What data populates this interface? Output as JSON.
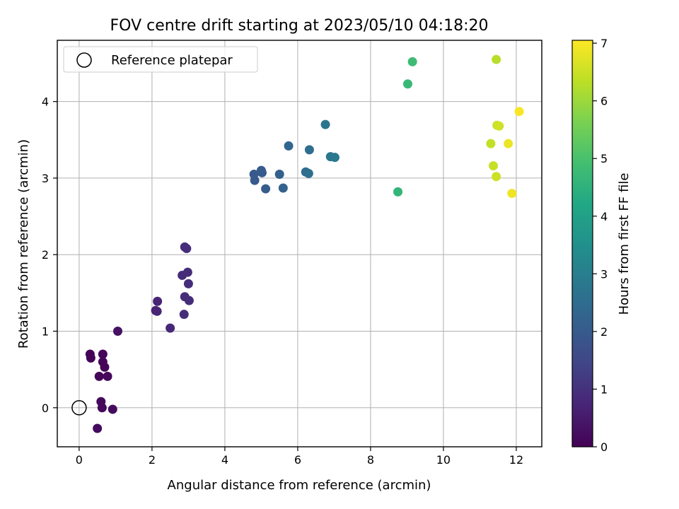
{
  "chart_data": {
    "type": "scatter",
    "title": "FOV centre drift starting at 2023/05/10 04:18:20",
    "xlabel": "Angular distance from reference (arcmin)",
    "ylabel": "Rotation from reference (arcmin)",
    "xlim": [
      -0.6,
      12.7
    ],
    "ylim": [
      -0.51,
      4.8
    ],
    "xticks": [
      0,
      2,
      4,
      6,
      8,
      10,
      12
    ],
    "yticks": [
      0,
      1,
      2,
      3,
      4
    ],
    "grid": true,
    "legend": {
      "placement": "top-left",
      "entries": [
        {
          "label": "Reference platepar",
          "marker": "open-circle"
        }
      ]
    },
    "reference_point": {
      "x": 0,
      "y": 0
    },
    "colorbar": {
      "label": "Hours from first FF file",
      "colormap": "viridis",
      "range": [
        0,
        7.05
      ],
      "ticks": [
        0,
        1,
        2,
        3,
        4,
        5,
        6,
        7
      ]
    },
    "points": [
      {
        "x": 0.3,
        "y": 0.7,
        "c": 0.05
      },
      {
        "x": 0.32,
        "y": 0.65,
        "c": 0.05
      },
      {
        "x": 0.65,
        "y": 0.7,
        "c": 0.1
      },
      {
        "x": 0.65,
        "y": 0.6,
        "c": 0.1
      },
      {
        "x": 0.7,
        "y": 0.53,
        "c": 0.1
      },
      {
        "x": 0.55,
        "y": 0.41,
        "c": 0.1
      },
      {
        "x": 0.78,
        "y": 0.41,
        "c": 0.15
      },
      {
        "x": 0.6,
        "y": 0.08,
        "c": 0.15
      },
      {
        "x": 0.63,
        "y": 0.0,
        "c": 0.15
      },
      {
        "x": 0.92,
        "y": -0.02,
        "c": 0.2
      },
      {
        "x": 0.5,
        "y": -0.27,
        "c": 0.2
      },
      {
        "x": 1.06,
        "y": 1.0,
        "c": 0.35
      },
      {
        "x": 2.1,
        "y": 1.27,
        "c": 0.7
      },
      {
        "x": 2.14,
        "y": 1.26,
        "c": 0.7
      },
      {
        "x": 2.15,
        "y": 1.39,
        "c": 0.7
      },
      {
        "x": 2.5,
        "y": 1.04,
        "c": 0.8
      },
      {
        "x": 2.88,
        "y": 1.22,
        "c": 0.9
      },
      {
        "x": 2.9,
        "y": 1.45,
        "c": 0.9
      },
      {
        "x": 3.02,
        "y": 1.4,
        "c": 0.9
      },
      {
        "x": 3.0,
        "y": 1.62,
        "c": 0.9
      },
      {
        "x": 2.83,
        "y": 1.73,
        "c": 0.9
      },
      {
        "x": 2.98,
        "y": 1.77,
        "c": 0.9
      },
      {
        "x": 2.9,
        "y": 2.1,
        "c": 0.9
      },
      {
        "x": 2.95,
        "y": 2.08,
        "c": 0.9
      },
      {
        "x": 4.8,
        "y": 3.05,
        "c": 1.95
      },
      {
        "x": 4.82,
        "y": 2.97,
        "c": 1.95
      },
      {
        "x": 5.0,
        "y": 3.1,
        "c": 2.0
      },
      {
        "x": 5.02,
        "y": 3.07,
        "c": 2.0
      },
      {
        "x": 5.12,
        "y": 2.86,
        "c": 2.05
      },
      {
        "x": 5.5,
        "y": 3.05,
        "c": 2.15
      },
      {
        "x": 5.6,
        "y": 2.87,
        "c": 2.2
      },
      {
        "x": 5.75,
        "y": 3.42,
        "c": 2.3
      },
      {
        "x": 6.22,
        "y": 3.08,
        "c": 2.5
      },
      {
        "x": 6.3,
        "y": 3.06,
        "c": 2.55
      },
      {
        "x": 6.32,
        "y": 3.37,
        "c": 2.55
      },
      {
        "x": 6.76,
        "y": 3.7,
        "c": 2.75
      },
      {
        "x": 6.9,
        "y": 3.28,
        "c": 2.8
      },
      {
        "x": 7.02,
        "y": 3.27,
        "c": 2.85
      },
      {
        "x": 8.75,
        "y": 2.82,
        "c": 4.6
      },
      {
        "x": 9.02,
        "y": 4.23,
        "c": 4.7
      },
      {
        "x": 9.15,
        "y": 4.52,
        "c": 4.8
      },
      {
        "x": 11.45,
        "y": 4.55,
        "c": 6.3
      },
      {
        "x": 11.3,
        "y": 3.45,
        "c": 6.4
      },
      {
        "x": 11.37,
        "y": 3.16,
        "c": 6.45
      },
      {
        "x": 11.45,
        "y": 3.02,
        "c": 6.5
      },
      {
        "x": 11.47,
        "y": 3.69,
        "c": 6.5
      },
      {
        "x": 11.53,
        "y": 3.68,
        "c": 6.55
      },
      {
        "x": 11.78,
        "y": 3.45,
        "c": 6.85
      },
      {
        "x": 11.88,
        "y": 2.8,
        "c": 6.9
      },
      {
        "x": 12.08,
        "y": 3.87,
        "c": 7.0
      }
    ]
  }
}
